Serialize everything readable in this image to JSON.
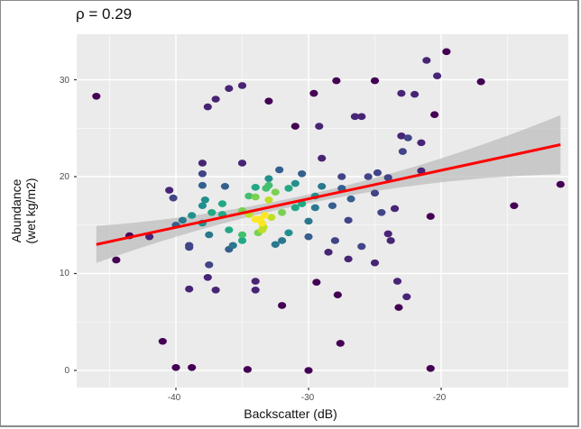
{
  "title": "ρ = 0.29",
  "axes": {
    "xlabel": "Backscatter (dB)",
    "ylabel_line1": "Abundance",
    "ylabel_line2": "(wet kg/m2)",
    "xticks": [
      "-40",
      "-30",
      "-20"
    ],
    "yticks": [
      "0",
      "10",
      "20",
      "30"
    ]
  },
  "colors": {
    "panel_bg": "#ebebeb",
    "grid": "#ffffff",
    "fit_line": "#ff0000",
    "ci_band": "#bdbdbd",
    "point_low": "#440154",
    "point_mid": "#21908c",
    "point_high": "#fde725"
  },
  "chart_data": {
    "type": "scatter",
    "title": "ρ = 0.29",
    "xlabel": "Backscatter (dB)",
    "ylabel": "Abundance (wet kg/m2)",
    "xlim": [
      -47,
      -9
    ],
    "ylim": [
      -1.5,
      35
    ],
    "xticks": [
      -40,
      -30,
      -20
    ],
    "yticks": [
      0,
      10,
      20,
      30
    ],
    "grid": true,
    "color_encoding": "point density (viridis)",
    "fit": {
      "type": "linear",
      "x": [
        -46,
        -11
      ],
      "y": [
        13.0,
        23.3
      ],
      "ci": true
    },
    "points": [
      [
        -46,
        28.3
      ],
      [
        -44.5,
        11.4
      ],
      [
        -43.5,
        13.9
      ],
      [
        -42,
        13.8
      ],
      [
        -41,
        3
      ],
      [
        -40.5,
        18.6
      ],
      [
        -40.2,
        17.8
      ],
      [
        -40,
        15
      ],
      [
        -40,
        0.3
      ],
      [
        -39.5,
        15.5
      ],
      [
        -39,
        8.4
      ],
      [
        -39,
        12.7
      ],
      [
        -39,
        12.9
      ],
      [
        -38.8,
        16
      ],
      [
        -38.8,
        0.3
      ],
      [
        -38,
        17
      ],
      [
        -38,
        15.2
      ],
      [
        -38,
        21.4
      ],
      [
        -38,
        20.3
      ],
      [
        -38,
        19.1
      ],
      [
        -37.8,
        17.6
      ],
      [
        -37.6,
        27.2
      ],
      [
        -37.6,
        9.6
      ],
      [
        -37.5,
        14
      ],
      [
        -37.5,
        10.9
      ],
      [
        -37.3,
        16.3
      ],
      [
        -37,
        28
      ],
      [
        -37,
        8.3
      ],
      [
        -36.5,
        16.1
      ],
      [
        -36.5,
        17.2
      ],
      [
        -36.3,
        19
      ],
      [
        -36,
        29.1
      ],
      [
        -36,
        14.5
      ],
      [
        -36,
        12.5
      ],
      [
        -35.7,
        12.9
      ],
      [
        -35,
        29.4
      ],
      [
        -35,
        16.5
      ],
      [
        -35,
        14
      ],
      [
        -35,
        13.4
      ],
      [
        -35,
        21.4
      ],
      [
        -34.6,
        0.1
      ],
      [
        -34.5,
        18
      ],
      [
        -34.5,
        16.1
      ],
      [
        -34,
        9.2
      ],
      [
        -34,
        8.3
      ],
      [
        -34,
        17.9
      ],
      [
        -34,
        15.6
      ],
      [
        -34,
        18.9
      ],
      [
        -33.8,
        14.2
      ],
      [
        -33.7,
        15.6
      ],
      [
        -33.5,
        14.5
      ],
      [
        -33.5,
        15.2
      ],
      [
        -33.4,
        14.8
      ],
      [
        -33.3,
        16
      ],
      [
        -33.2,
        18.8
      ],
      [
        -33,
        27.8
      ],
      [
        -33,
        19.8
      ],
      [
        -33,
        19.1
      ],
      [
        -33,
        17.6
      ],
      [
        -32.8,
        15.8
      ],
      [
        -32.5,
        13
      ],
      [
        -32.5,
        18.4
      ],
      [
        -32.2,
        20.7
      ],
      [
        -32,
        16.3
      ],
      [
        -32,
        6.7
      ],
      [
        -32,
        13.4
      ],
      [
        -31.5,
        18.8
      ],
      [
        -31.5,
        14.2
      ],
      [
        -31,
        25.2
      ],
      [
        -31,
        19.3
      ],
      [
        -31,
        16.8
      ],
      [
        -30.5,
        20.3
      ],
      [
        -30.5,
        17.2
      ],
      [
        -30,
        13.8
      ],
      [
        -30,
        0
      ],
      [
        -30,
        15.4
      ],
      [
        -29.6,
        28.6
      ],
      [
        -29.5,
        18
      ],
      [
        -29.5,
        16.8
      ],
      [
        -29.4,
        9.1
      ],
      [
        -29.2,
        25.2
      ],
      [
        -29,
        21.9
      ],
      [
        -29,
        19
      ],
      [
        -28.5,
        12.2
      ],
      [
        -28.2,
        17
      ],
      [
        -28,
        13.4
      ],
      [
        -27.9,
        29.9
      ],
      [
        -27.8,
        7.8
      ],
      [
        -27.6,
        2.8
      ],
      [
        -27.5,
        18.8
      ],
      [
        -27.5,
        20
      ],
      [
        -27,
        15.5
      ],
      [
        -27,
        11.5
      ],
      [
        -26.8,
        17.7
      ],
      [
        -26.5,
        26.2
      ],
      [
        -26,
        26.2
      ],
      [
        -26,
        12.8
      ],
      [
        -25.5,
        20
      ],
      [
        -25,
        29.9
      ],
      [
        -25,
        18.3
      ],
      [
        -25,
        11.1
      ],
      [
        -24.8,
        20.4
      ],
      [
        -24.5,
        16.3
      ],
      [
        -24,
        19.9
      ],
      [
        -24,
        14.1
      ],
      [
        -23.8,
        13.4
      ],
      [
        -23.5,
        16.7
      ],
      [
        -23.3,
        9.2
      ],
      [
        -23.2,
        6.5
      ],
      [
        -23,
        28.6
      ],
      [
        -23,
        24.2
      ],
      [
        -22.9,
        22.6
      ],
      [
        -22.6,
        7.6
      ],
      [
        -22.5,
        24
      ],
      [
        -22,
        28.5
      ],
      [
        -21.5,
        23.5
      ],
      [
        -21.5,
        20.6
      ],
      [
        -21.1,
        32
      ],
      [
        -20.8,
        0.2
      ],
      [
        -20.8,
        15.9
      ],
      [
        -20.5,
        26.4
      ],
      [
        -20.3,
        30.4
      ],
      [
        -19.6,
        32.9
      ],
      [
        -17,
        29.8
      ],
      [
        -14.5,
        17
      ],
      [
        -11,
        19.2
      ]
    ]
  }
}
